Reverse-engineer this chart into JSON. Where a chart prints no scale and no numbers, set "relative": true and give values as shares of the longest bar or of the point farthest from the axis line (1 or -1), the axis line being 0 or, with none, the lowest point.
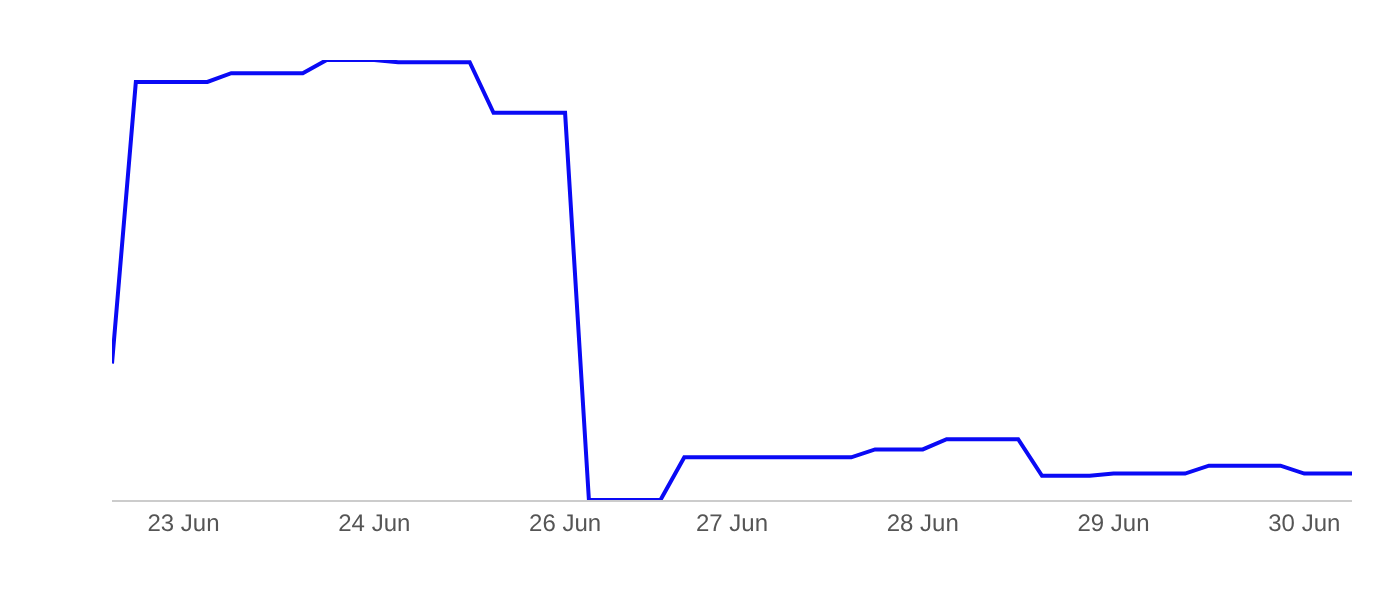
{
  "chart_data": {
    "type": "line",
    "relative": true,
    "categories": [
      null,
      null,
      null,
      "23 Jun",
      null,
      null,
      null,
      null,
      null,
      null,
      null,
      "24 Jun",
      null,
      null,
      null,
      null,
      null,
      null,
      null,
      "26 Jun",
      null,
      null,
      null,
      null,
      null,
      null,
      "27 Jun",
      null,
      null,
      null,
      null,
      null,
      null,
      null,
      "28 Jun",
      null,
      null,
      null,
      null,
      null,
      null,
      null,
      "29 Jun",
      null,
      null,
      null,
      null,
      null,
      null,
      null,
      "30 Jun",
      null,
      null
    ],
    "series": [
      {
        "color": "#0a0af5",
        "values": [
          0.31,
          0.95,
          0.95,
          0.95,
          0.95,
          0.97,
          0.97,
          0.97,
          0.97,
          1,
          1,
          1,
          0.995,
          0.995,
          0.995,
          0.995,
          0.88,
          0.88,
          0.88,
          0.88,
          0,
          0,
          0,
          0,
          0.097,
          0.097,
          0.097,
          0.097,
          0.097,
          0.097,
          0.097,
          0.097,
          0.115,
          0.115,
          0.115,
          0.138,
          0.138,
          0.138,
          0.138,
          0.055,
          0.055,
          0.055,
          0.06,
          0.06,
          0.06,
          0.06,
          0.078,
          0.078,
          0.078,
          0.078,
          0.06,
          0.06,
          0.06
        ]
      }
    ],
    "line_style": "solid",
    "marker": "none",
    "grid": false
  }
}
